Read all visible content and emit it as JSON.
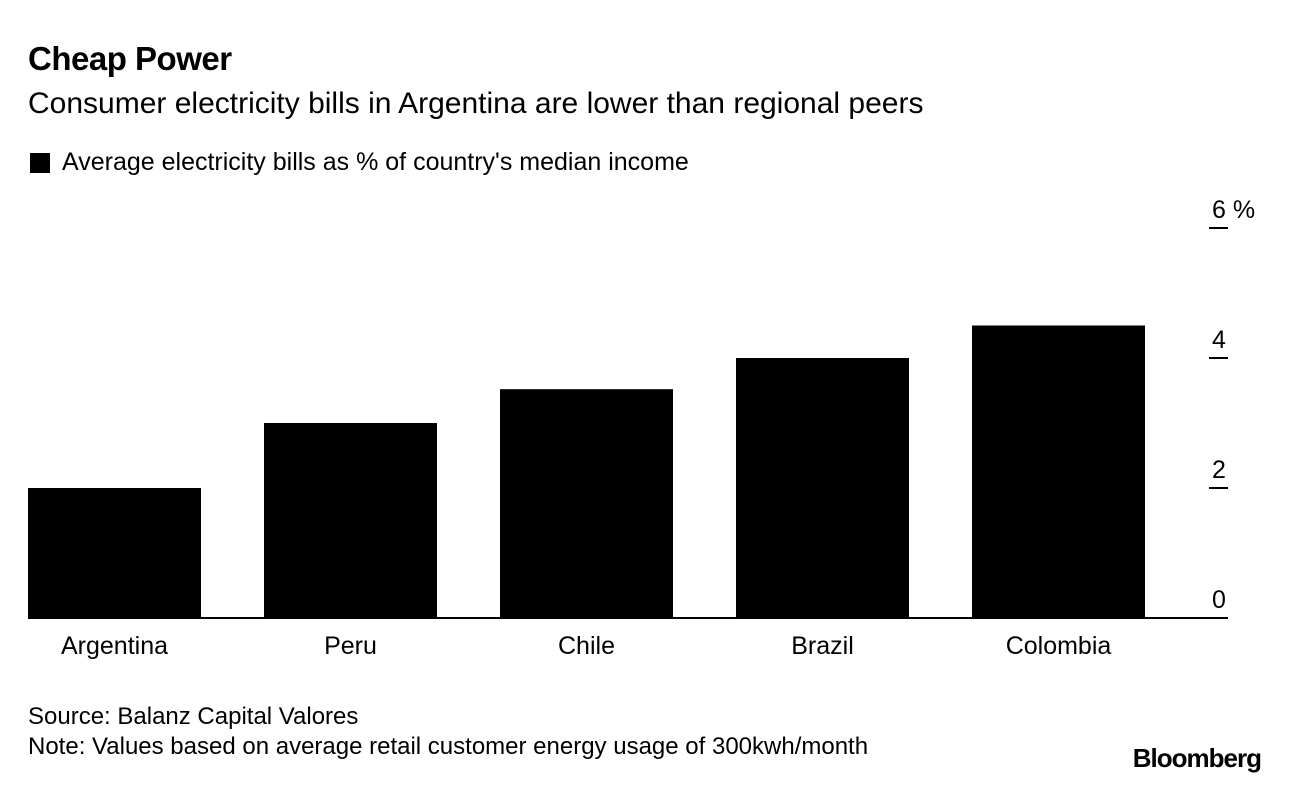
{
  "title": "Cheap Power",
  "subtitle": "Consumer electricity bills in Argentina are lower than regional peers",
  "legend_label": "Average electricity bills as % of country's median income",
  "source": "Source: Balanz Capital Valores",
  "note": "Note: Values based on average retail customer energy usage of 300kwh/month",
  "brand": "Bloomberg",
  "chart_data": {
    "type": "bar",
    "title": "Cheap Power",
    "subtitle": "Consumer electricity bills in Argentina are lower than regional peers",
    "categories": [
      "Argentina",
      "Peru",
      "Chile",
      "Brazil",
      "Colombia"
    ],
    "series": [
      {
        "name": "Average electricity bills as % of country's median income",
        "values": [
          2.0,
          3.0,
          3.52,
          4.0,
          4.5
        ],
        "color": "#000000"
      }
    ],
    "ylim": [
      0,
      6
    ],
    "yticks": [
      0,
      2,
      4,
      6
    ],
    "ytick_labels": [
      "0",
      "2",
      "4",
      "6 %"
    ],
    "y_axis_side": "right",
    "xlabel": "",
    "ylabel": "",
    "grid": false,
    "legend_position": "top-left"
  }
}
